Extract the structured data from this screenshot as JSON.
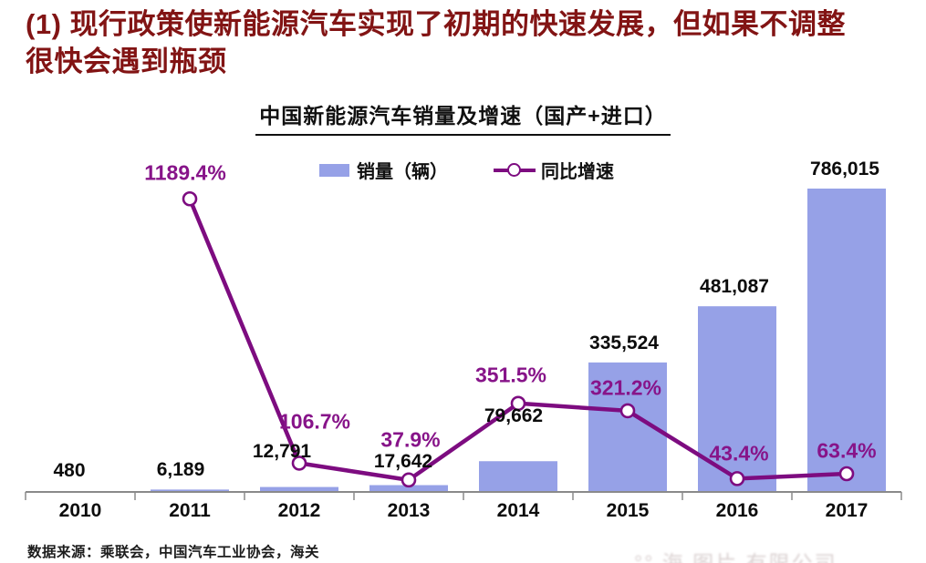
{
  "page": {
    "heading_line1": "(1) 现行政策使新能源汽车实现了初期的快速发展，但如果不调整",
    "heading_line2": "很快会遇到瓶颈",
    "source_note": "数据来源：乘联会，中国汽车工业协会，海关",
    "watermark": "°° 海 图片 有限公司"
  },
  "colors": {
    "bar": "#96A1E7",
    "line": "#7D0C80",
    "pct_label": "#871489",
    "axis": "#8a8a8a",
    "heading": "#821414",
    "text": "#101010"
  },
  "chart_data": {
    "type": "bar+line",
    "title": "中国新能源汽车销量及增速（国产+进口）",
    "legend": [
      {
        "label": "销量（辆）",
        "type": "bar"
      },
      {
        "label": "同比增速",
        "type": "line"
      }
    ],
    "categories": [
      "2010",
      "2011",
      "2012",
      "2013",
      "2014",
      "2015",
      "2016",
      "2017"
    ],
    "series": [
      {
        "name": "销量（辆）",
        "type": "bar",
        "values": [
          480,
          6189,
          12791,
          17642,
          79662,
          335524,
          481087,
          786015
        ],
        "labels": [
          "480",
          "6,189",
          "12,791",
          "17,642",
          "79,662",
          "335,524",
          "481,087",
          "786,015"
        ]
      },
      {
        "name": "同比增速",
        "type": "line",
        "values": [
          null,
          1189.4,
          106.7,
          37.9,
          351.5,
          321.2,
          43.4,
          63.4
        ],
        "labels": [
          null,
          "1189.4%",
          "106.7%",
          "37.9%",
          "351.5%",
          "321.2%",
          "43.4%",
          "63.4%"
        ],
        "unit": "%"
      }
    ],
    "grid": false,
    "legend_position": "top"
  }
}
